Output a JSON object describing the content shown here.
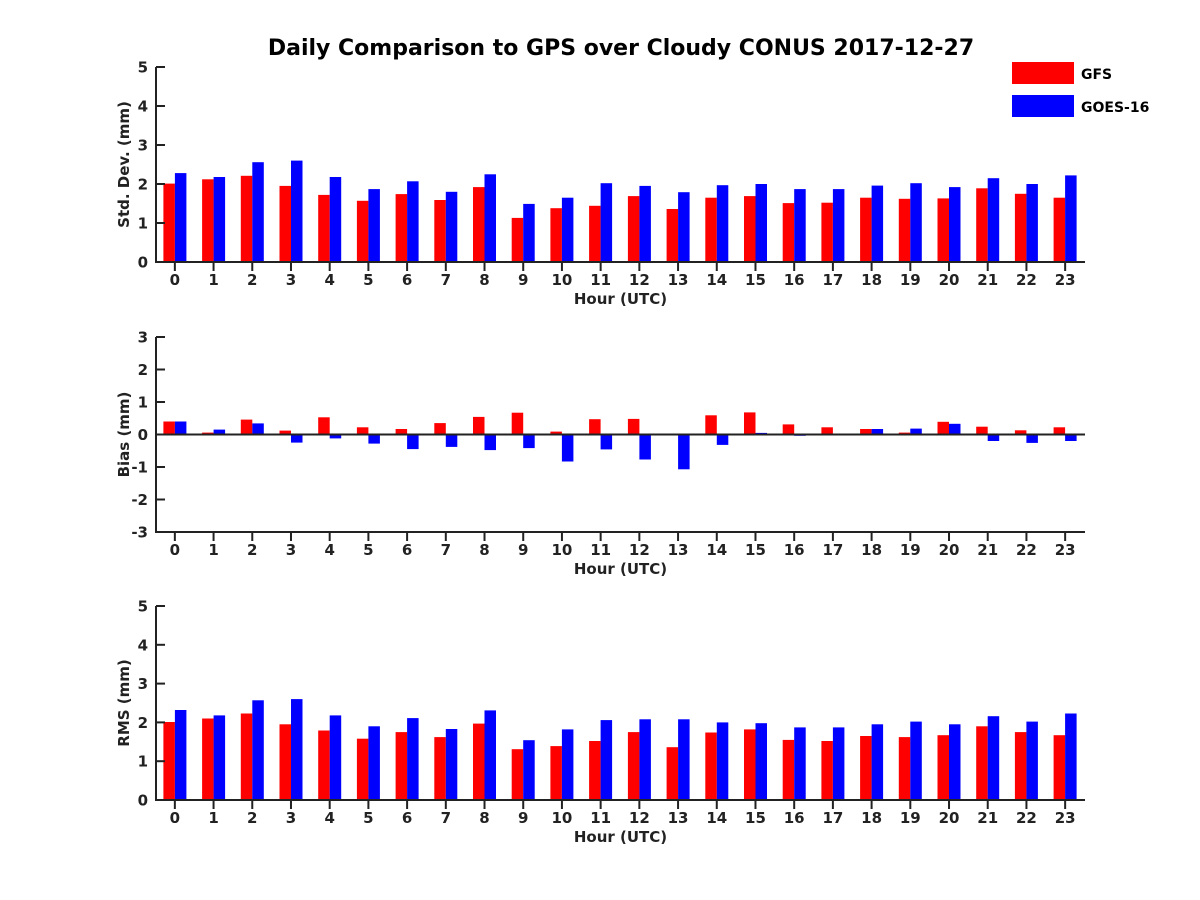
{
  "title": "Daily Comparison to GPS over Cloudy CONUS 2017-12-27",
  "colors": {
    "GFS": "#ff0000",
    "GOES-16": "#0000ff",
    "axis": "#222222"
  },
  "legend": {
    "placement": "top-right",
    "entries": [
      "GFS",
      "GOES-16"
    ]
  },
  "chart_data": [
    {
      "type": "bar",
      "xlabel": "Hour (UTC)",
      "ylabel": "Std. Dev. (mm)",
      "ylim": [
        0,
        5
      ],
      "yticks": [
        "0",
        "1",
        "2",
        "3",
        "4",
        "5"
      ],
      "categories": [
        "0",
        "1",
        "2",
        "3",
        "4",
        "5",
        "6",
        "7",
        "8",
        "9",
        "10",
        "11",
        "12",
        "13",
        "14",
        "15",
        "16",
        "17",
        "18",
        "19",
        "20",
        "21",
        "22",
        "23"
      ],
      "series": [
        {
          "name": "GFS",
          "values": [
            2.01,
            2.12,
            2.21,
            1.95,
            1.72,
            1.57,
            1.74,
            1.59,
            1.92,
            1.13,
            1.38,
            1.44,
            1.69,
            1.36,
            1.65,
            1.69,
            1.51,
            1.52,
            1.65,
            1.62,
            1.63,
            1.89,
            1.75,
            1.65
          ]
        },
        {
          "name": "GOES-16",
          "values": [
            2.28,
            2.18,
            2.56,
            2.6,
            2.18,
            1.87,
            2.07,
            1.8,
            2.25,
            1.49,
            1.65,
            2.02,
            1.95,
            1.79,
            1.97,
            2.0,
            1.87,
            1.87,
            1.96,
            2.02,
            1.92,
            2.15,
            2.0,
            2.22
          ]
        }
      ]
    },
    {
      "type": "bar",
      "xlabel": "Hour (UTC)",
      "ylabel": "Bias (mm)",
      "ylim": [
        -3,
        3
      ],
      "yticks": [
        "-3",
        "-2",
        "-1",
        "0",
        "1",
        "2",
        "3"
      ],
      "categories": [
        "0",
        "1",
        "2",
        "3",
        "4",
        "5",
        "6",
        "7",
        "8",
        "9",
        "10",
        "11",
        "12",
        "13",
        "14",
        "15",
        "16",
        "17",
        "18",
        "19",
        "20",
        "21",
        "22",
        "23"
      ],
      "series": [
        {
          "name": "GFS",
          "values": [
            0.4,
            0.06,
            0.46,
            0.12,
            0.53,
            0.22,
            0.17,
            0.35,
            0.54,
            0.67,
            0.09,
            0.47,
            0.48,
            0.02,
            0.59,
            0.68,
            0.31,
            0.22,
            0.17,
            0.06,
            0.39,
            0.24,
            0.13,
            0.22
          ]
        },
        {
          "name": "GOES-16",
          "values": [
            0.4,
            0.15,
            0.34,
            -0.25,
            -0.12,
            -0.28,
            -0.45,
            -0.38,
            -0.48,
            -0.42,
            -0.83,
            -0.46,
            -0.77,
            -1.07,
            -0.32,
            0.05,
            -0.04,
            0.01,
            0.17,
            0.18,
            0.33,
            -0.2,
            -0.26,
            -0.2
          ]
        }
      ]
    },
    {
      "type": "bar",
      "xlabel": "Hour (UTC)",
      "ylabel": "RMS (mm)",
      "ylim": [
        0,
        5
      ],
      "yticks": [
        "0",
        "1",
        "2",
        "3",
        "4",
        "5"
      ],
      "categories": [
        "0",
        "1",
        "2",
        "3",
        "4",
        "5",
        "6",
        "7",
        "8",
        "9",
        "10",
        "11",
        "12",
        "13",
        "14",
        "15",
        "16",
        "17",
        "18",
        "19",
        "20",
        "21",
        "22",
        "23"
      ],
      "series": [
        {
          "name": "GFS",
          "values": [
            2.01,
            2.1,
            2.23,
            1.95,
            1.79,
            1.58,
            1.75,
            1.62,
            1.97,
            1.31,
            1.39,
            1.52,
            1.75,
            1.36,
            1.74,
            1.82,
            1.55,
            1.52,
            1.65,
            1.62,
            1.67,
            1.9,
            1.75,
            1.67
          ]
        },
        {
          "name": "GOES-16",
          "values": [
            2.32,
            2.18,
            2.57,
            2.6,
            2.18,
            1.9,
            2.11,
            1.83,
            2.31,
            1.54,
            1.82,
            2.06,
            2.08,
            2.08,
            2.0,
            1.98,
            1.87,
            1.87,
            1.95,
            2.02,
            1.95,
            2.16,
            2.02,
            2.23
          ]
        }
      ]
    }
  ]
}
